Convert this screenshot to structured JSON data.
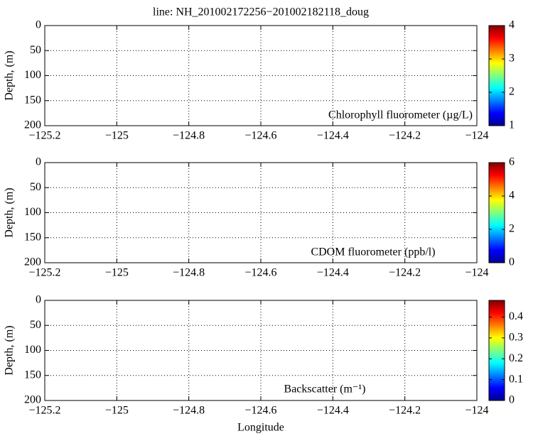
{
  "chart_data": [
    {
      "type": "heatmap",
      "title": "line: NH_201002172256−201002182118_doug",
      "ylabel": "Depth, (m)",
      "annotation": "Chlorophyll fluorometer (µg/L)",
      "xlim": [
        -125.2,
        -124
      ],
      "xticks": [
        {
          "value": -125.2,
          "label": "−125.2"
        },
        {
          "value": -125,
          "label": "−125"
        },
        {
          "value": -124.8,
          "label": "−124.8"
        },
        {
          "value": -124.6,
          "label": "−124.6"
        },
        {
          "value": -124.4,
          "label": "−124.4"
        },
        {
          "value": -124.2,
          "label": "−124.2"
        },
        {
          "value": -124,
          "label": "−124"
        }
      ],
      "ylim": [
        200,
        0
      ],
      "yticks": [
        0,
        50,
        100,
        150,
        200
      ],
      "grid": true,
      "colormap": "jet",
      "clim": [
        1,
        4
      ],
      "cticks": [
        1,
        2,
        3,
        4
      ]
    },
    {
      "type": "heatmap",
      "ylabel": "Depth, (m)",
      "annotation": "CDOM fluorometer (ppb/l)",
      "xlim": [
        -125.2,
        -124
      ],
      "xticks": [
        {
          "value": -125.2,
          "label": "−125.2"
        },
        {
          "value": -125,
          "label": "−125"
        },
        {
          "value": -124.8,
          "label": "−124.8"
        },
        {
          "value": -124.6,
          "label": "−124.6"
        },
        {
          "value": -124.4,
          "label": "−124.4"
        },
        {
          "value": -124.2,
          "label": "−124.2"
        },
        {
          "value": -124,
          "label": "−124"
        }
      ],
      "ylim": [
        200,
        0
      ],
      "yticks": [
        0,
        50,
        100,
        150,
        200
      ],
      "grid": true,
      "colormap": "jet",
      "clim": [
        0,
        6
      ],
      "cticks": [
        0,
        2,
        4,
        6
      ]
    },
    {
      "type": "heatmap",
      "ylabel": "Depth, (m)",
      "annotation": "Backscatter (m⁻¹)",
      "xlabel": "Longitude",
      "xlim": [
        -125.2,
        -124
      ],
      "xticks": [
        {
          "value": -125.2,
          "label": "−125.2"
        },
        {
          "value": -125,
          "label": "−125"
        },
        {
          "value": -124.8,
          "label": "−124.8"
        },
        {
          "value": -124.6,
          "label": "−124.6"
        },
        {
          "value": -124.4,
          "label": "−124.4"
        },
        {
          "value": -124.2,
          "label": "−124.2"
        },
        {
          "value": -124,
          "label": "−124"
        }
      ],
      "ylim": [
        200,
        0
      ],
      "yticks": [
        0,
        50,
        100,
        150,
        200
      ],
      "grid": true,
      "colormap": "jet",
      "clim": [
        0,
        0.48
      ],
      "cticks": [
        0,
        0.1,
        0.2,
        0.3,
        0.4
      ]
    }
  ]
}
